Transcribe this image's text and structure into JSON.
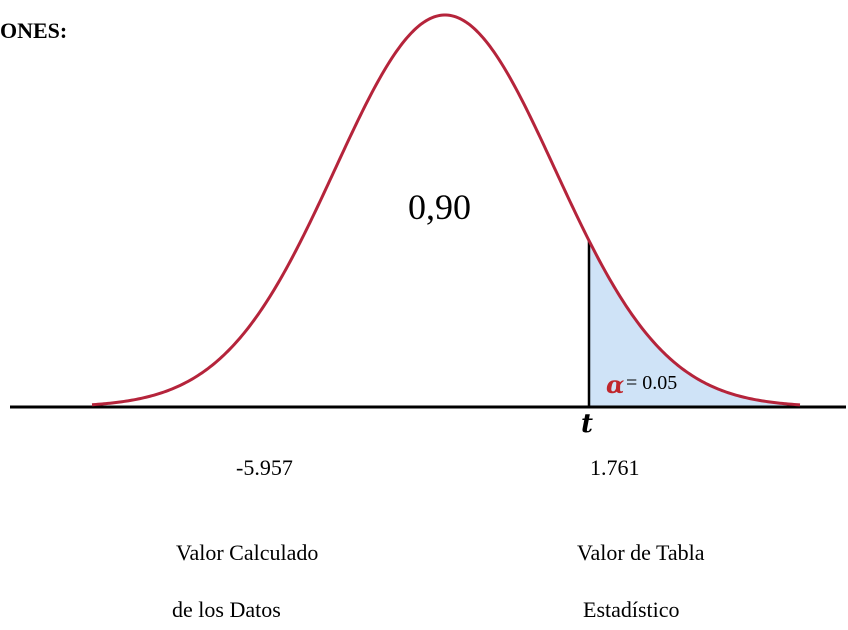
{
  "heading": "ONES:",
  "central_area_label": "0,90",
  "alpha": {
    "symbol": "α",
    "value_text": "= 0.05"
  },
  "t_symbol": "t",
  "values": {
    "calculated": "-5.957",
    "table": "1.761"
  },
  "captions": {
    "calculated_line1": "Valor Calculado",
    "calculated_line2": "de los Datos",
    "table_line1": "Valor de Tabla",
    "table_line2": "Estadístico"
  },
  "colors": {
    "curve": "#b5243b",
    "tail_fill": "#cfe3f7",
    "axis": "#000000",
    "alpha": "#c0262c"
  }
}
